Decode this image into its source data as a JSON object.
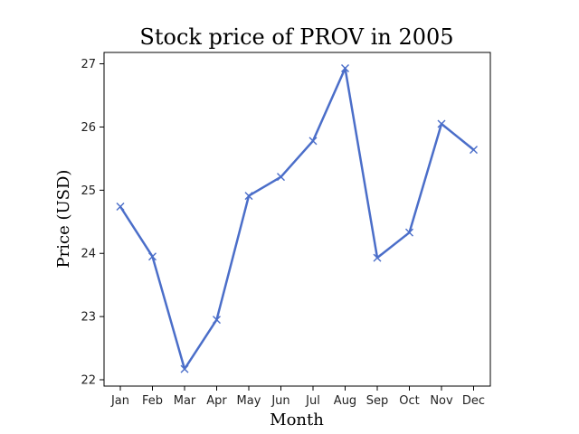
{
  "chart_data": {
    "type": "line",
    "title": "Stock price of PROV in 2005",
    "xlabel": "Month",
    "ylabel": "Price (USD)",
    "categories": [
      "Jan",
      "Feb",
      "Mar",
      "Apr",
      "May",
      "Jun",
      "Jul",
      "Aug",
      "Sep",
      "Oct",
      "Nov",
      "Dec"
    ],
    "values": [
      24.74,
      23.95,
      22.17,
      22.95,
      24.91,
      25.21,
      25.78,
      26.93,
      23.93,
      24.33,
      26.05,
      25.64
    ],
    "ylim": [
      21.9,
      27.18
    ],
    "yticks": [
      22,
      23,
      24,
      25,
      26,
      27
    ],
    "grid": false,
    "legend": "none",
    "marker": "x",
    "line_color": "#4b6ec9"
  }
}
